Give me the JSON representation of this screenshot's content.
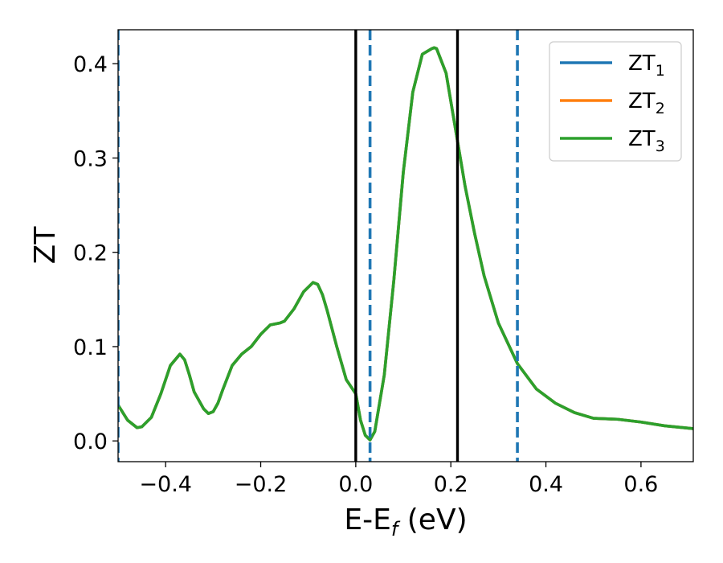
{
  "chart_data": {
    "type": "line",
    "xlabel": "E-E$_f$ (eV)",
    "ylabel": "ZT",
    "xlim": [
      -0.5,
      0.71
    ],
    "ylim": [
      -0.022,
      0.436
    ],
    "x_ticks": [
      -0.4,
      -0.2,
      0.0,
      0.2,
      0.4,
      0.6
    ],
    "x_tick_labels": [
      "−0.4",
      "−0.2",
      "0.0",
      "0.2",
      "0.4",
      "0.6"
    ],
    "y_ticks": [
      0.0,
      0.1,
      0.2,
      0.3,
      0.4
    ],
    "y_tick_labels": [
      "0.0",
      "0.1",
      "0.2",
      "0.3",
      "0.4"
    ],
    "grid": false,
    "legend_position": "top-right",
    "x": [
      -0.5,
      -0.48,
      -0.46,
      -0.45,
      -0.43,
      -0.41,
      -0.39,
      -0.37,
      -0.36,
      -0.35,
      -0.34,
      -0.32,
      -0.31,
      -0.3,
      -0.29,
      -0.28,
      -0.26,
      -0.24,
      -0.22,
      -0.2,
      -0.18,
      -0.16,
      -0.15,
      -0.13,
      -0.11,
      -0.09,
      -0.08,
      -0.07,
      -0.06,
      -0.04,
      -0.02,
      0.0,
      0.01,
      0.02,
      0.03,
      0.04,
      0.06,
      0.08,
      0.1,
      0.12,
      0.14,
      0.16,
      0.165,
      0.17,
      0.19,
      0.21,
      0.23,
      0.25,
      0.27,
      0.3,
      0.34,
      0.38,
      0.42,
      0.46,
      0.5,
      0.55,
      0.6,
      0.65,
      0.71
    ],
    "series": [
      {
        "name": "ZT$_1$",
        "color": "#1f77b4",
        "values": [
          0.038,
          0.022,
          0.014,
          0.015,
          0.025,
          0.05,
          0.08,
          0.092,
          0.086,
          0.07,
          0.052,
          0.034,
          0.029,
          0.031,
          0.04,
          0.054,
          0.08,
          0.092,
          0.1,
          0.113,
          0.123,
          0.125,
          0.127,
          0.14,
          0.158,
          0.168,
          0.166,
          0.155,
          0.138,
          0.1,
          0.065,
          0.05,
          0.022,
          0.006,
          0.001,
          0.01,
          0.07,
          0.17,
          0.285,
          0.37,
          0.41,
          0.416,
          0.417,
          0.416,
          0.39,
          0.33,
          0.27,
          0.22,
          0.175,
          0.125,
          0.082,
          0.055,
          0.04,
          0.03,
          0.024,
          0.023,
          0.02,
          0.016,
          0.013
        ]
      },
      {
        "name": "ZT$_2$",
        "color": "#ff7f0e",
        "values": [
          0.038,
          0.022,
          0.014,
          0.015,
          0.025,
          0.05,
          0.08,
          0.092,
          0.086,
          0.07,
          0.052,
          0.034,
          0.029,
          0.031,
          0.04,
          0.054,
          0.08,
          0.092,
          0.1,
          0.113,
          0.123,
          0.125,
          0.127,
          0.14,
          0.158,
          0.168,
          0.166,
          0.155,
          0.138,
          0.1,
          0.065,
          0.05,
          0.022,
          0.006,
          0.001,
          0.01,
          0.07,
          0.17,
          0.285,
          0.37,
          0.41,
          0.416,
          0.417,
          0.416,
          0.39,
          0.33,
          0.27,
          0.22,
          0.175,
          0.125,
          0.082,
          0.055,
          0.04,
          0.03,
          0.024,
          0.023,
          0.02,
          0.016,
          0.013
        ]
      },
      {
        "name": "ZT$_3$",
        "color": "#2ca02c",
        "values": [
          0.038,
          0.022,
          0.014,
          0.015,
          0.025,
          0.05,
          0.08,
          0.092,
          0.086,
          0.07,
          0.052,
          0.034,
          0.029,
          0.031,
          0.04,
          0.054,
          0.08,
          0.092,
          0.1,
          0.113,
          0.123,
          0.125,
          0.127,
          0.14,
          0.158,
          0.168,
          0.166,
          0.155,
          0.138,
          0.1,
          0.065,
          0.05,
          0.022,
          0.006,
          0.001,
          0.01,
          0.07,
          0.17,
          0.285,
          0.37,
          0.41,
          0.416,
          0.417,
          0.416,
          0.39,
          0.33,
          0.27,
          0.22,
          0.175,
          0.125,
          0.082,
          0.055,
          0.04,
          0.03,
          0.024,
          0.023,
          0.02,
          0.016,
          0.013
        ]
      }
    ],
    "vlines": [
      {
        "x": 0.0,
        "style": "solid",
        "color": "#000000"
      },
      {
        "x": 0.214,
        "style": "solid",
        "color": "#000000"
      },
      {
        "x": 0.03,
        "style": "dashed",
        "color": "#1f77b4"
      },
      {
        "x": 0.34,
        "style": "dashed",
        "color": "#1f77b4"
      },
      {
        "x": -0.5,
        "style": "dashed",
        "color": "#1f77b4"
      }
    ]
  }
}
